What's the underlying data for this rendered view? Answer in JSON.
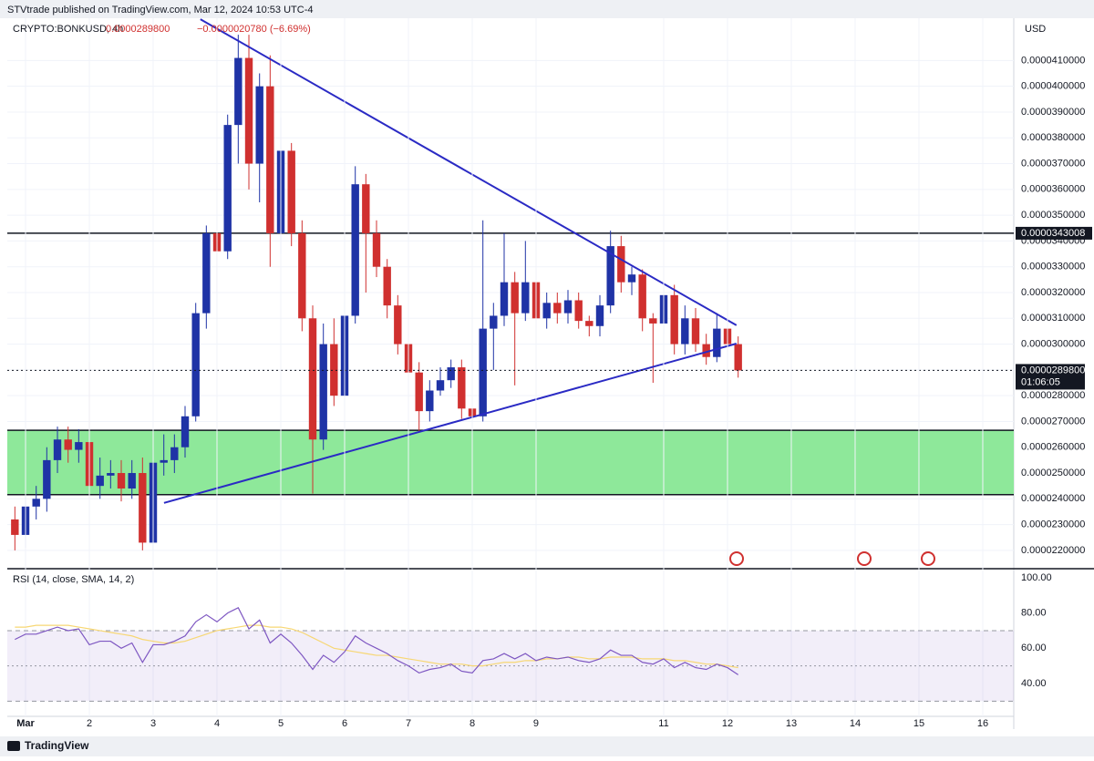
{
  "header": {
    "published": "STVtrade published on TradingView.com, Mar 12, 2024 10:53 UTC-4",
    "footer": "TradingView"
  },
  "chart_data": [
    {
      "type": "candlestick",
      "symbol": "CRYPTO:BONKUSD, 4h",
      "last": "0.0000289800",
      "change": "−0.0000020780 (−6.69%)",
      "currency": "USD",
      "x": [
        0.833,
        1,
        1.167,
        1.333,
        1.5,
        1.667,
        1.833,
        2,
        2.167,
        2.333,
        2.5,
        2.667,
        2.833,
        3,
        3.167,
        3.333,
        3.5,
        3.667,
        3.833,
        4,
        4.167,
        4.333,
        4.5,
        4.667,
        4.833,
        5,
        5.167,
        5.333,
        5.5,
        5.667,
        5.833,
        6,
        6.167,
        6.333,
        6.5,
        6.667,
        6.833,
        7,
        7.167,
        7.333,
        7.5,
        7.667,
        7.833,
        8,
        8.167,
        8.333,
        8.5,
        8.667,
        8.833,
        9,
        9.167,
        9.333,
        9.5,
        9.667,
        9.833,
        10,
        10.167,
        10.333,
        10.5,
        10.667,
        10.833,
        11,
        11.167,
        11.333,
        11.5,
        11.667,
        11.833,
        12,
        12.167
      ],
      "open": [
        2.32e-05,
        2.26e-05,
        2.37e-05,
        2.4e-05,
        2.55e-05,
        2.63e-05,
        2.59e-05,
        2.62e-05,
        2.45e-05,
        2.49e-05,
        2.5e-05,
        2.44e-05,
        2.5e-05,
        2.23e-05,
        2.54e-05,
        2.55e-05,
        2.6e-05,
        2.72e-05,
        3.12e-05,
        3.43e-05,
        3.36e-05,
        3.85e-05,
        4.11e-05,
        3.7e-05,
        4e-05,
        3.43e-05,
        3.75e-05,
        3.43e-05,
        3.1e-05,
        2.63e-05,
        3e-05,
        2.8e-05,
        3.11e-05,
        3.62e-05,
        3.43e-05,
        3.3e-05,
        3.15e-05,
        3e-05,
        2.89e-05,
        2.74e-05,
        2.82e-05,
        2.86e-05,
        2.91e-05,
        2.75e-05,
        2.72e-05,
        3.06e-05,
        3.11e-05,
        3.24e-05,
        3.12e-05,
        3.24e-05,
        3.1e-05,
        3.16e-05,
        3.12e-05,
        3.17e-05,
        3.09e-05,
        3.07e-05,
        3.15e-05,
        3.38e-05,
        3.24e-05,
        3.27e-05,
        3.1e-05,
        3.08e-05,
        3.19e-05,
        3e-05,
        3.1e-05,
        3e-05,
        2.95e-05,
        3.06e-05,
        3e-05
      ],
      "high": [
        2.37e-05,
        2.42e-05,
        2.45e-05,
        2.6e-05,
        2.68e-05,
        2.68e-05,
        2.67e-05,
        2.93e-05,
        2.56e-05,
        2.55e-05,
        2.55e-05,
        2.55e-05,
        2.56e-05,
        2.59e-05,
        2.65e-05,
        2.65e-05,
        2.76e-05,
        3.16e-05,
        3.46e-05,
        3.44e-05,
        3.89e-05,
        4.2e-05,
        4.2e-05,
        4.05e-05,
        4.12e-05,
        3.88e-05,
        3.78e-05,
        3.48e-05,
        3.15e-05,
        3.08e-05,
        3.1e-05,
        3.16e-05,
        3.69e-05,
        3.66e-05,
        3.48e-05,
        3.33e-05,
        3.19e-05,
        3.04e-05,
        2.93e-05,
        2.86e-05,
        2.91e-05,
        2.94e-05,
        2.94e-05,
        2.78e-05,
        3.48e-05,
        3.16e-05,
        3.43e-05,
        3.28e-05,
        3.4e-05,
        3.29e-05,
        3.2e-05,
        3.2e-05,
        3.21e-05,
        3.2e-05,
        3.11e-05,
        3.19e-05,
        3.44e-05,
        3.42e-05,
        3.3e-05,
        3.29e-05,
        3.12e-05,
        3.24e-05,
        3.23e-05,
        3.15e-05,
        3.14e-05,
        3.04e-05,
        3.12e-05,
        3.2e-05,
        3.03e-05
      ],
      "low": [
        2.2e-05,
        2.21e-05,
        2.32e-05,
        2.35e-05,
        2.5e-05,
        2.54e-05,
        2.54e-05,
        2.4e-05,
        2.4e-05,
        2.44e-05,
        2.39e-05,
        2.4e-05,
        2.2e-05,
        2.2e-05,
        2.49e-05,
        2.5e-05,
        2.56e-05,
        2.7e-05,
        3.06e-05,
        3.2e-05,
        3.33e-05,
        3.7e-05,
        3.6e-05,
        3.55e-05,
        3.3e-05,
        3.35e-05,
        3.38e-05,
        3.05e-05,
        2.42e-05,
        2.59e-05,
        2.76e-05,
        2.76e-05,
        3.08e-05,
        3.2e-05,
        3.26e-05,
        3.1e-05,
        2.96e-05,
        2.84e-05,
        2.66e-05,
        2.7e-05,
        2.8e-05,
        2.83e-05,
        2.71e-05,
        2.68e-05,
        2.7e-05,
        2.9e-05,
        3.07e-05,
        2.84e-05,
        3.09e-05,
        3.06e-05,
        3.06e-05,
        3.08e-05,
        3.08e-05,
        3.06e-05,
        3.03e-05,
        3.03e-05,
        3.12e-05,
        3.2e-05,
        3.19e-05,
        3.05e-05,
        2.85e-05,
        3.04e-05,
        2.96e-05,
        2.96e-05,
        2.97e-05,
        2.92e-05,
        2.93e-05,
        2.97e-05,
        2.87e-05
      ],
      "close": [
        2.26e-05,
        2.37e-05,
        2.4e-05,
        2.55e-05,
        2.63e-05,
        2.59e-05,
        2.62e-05,
        2.45e-05,
        2.49e-05,
        2.5e-05,
        2.44e-05,
        2.5e-05,
        2.23e-05,
        2.54e-05,
        2.55e-05,
        2.6e-05,
        2.72e-05,
        3.12e-05,
        3.43e-05,
        3.36e-05,
        3.85e-05,
        4.11e-05,
        3.7e-05,
        4e-05,
        3.43e-05,
        3.75e-05,
        3.43e-05,
        3.1e-05,
        2.63e-05,
        3e-05,
        2.8e-05,
        3.11e-05,
        3.62e-05,
        3.43e-05,
        3.3e-05,
        3.15e-05,
        3e-05,
        2.89e-05,
        2.74e-05,
        2.82e-05,
        2.86e-05,
        2.91e-05,
        2.75e-05,
        2.72e-05,
        3.06e-05,
        3.11e-05,
        3.24e-05,
        3.12e-05,
        3.24e-05,
        3.1e-05,
        3.16e-05,
        3.12e-05,
        3.17e-05,
        3.09e-05,
        3.07e-05,
        3.15e-05,
        3.38e-05,
        3.24e-05,
        3.27e-05,
        3.1e-05,
        3.08e-05,
        3.19e-05,
        3e-05,
        3.1e-05,
        3e-05,
        2.95e-05,
        3.06e-05,
        3e-05,
        2.898e-05
      ],
      "up_color": "#1f33a6",
      "down_color": "#d0302f",
      "xlim": [
        0.714,
        16.486
      ],
      "xticks": [
        {
          "value": 1,
          "label": "Mar"
        },
        2,
        3,
        4,
        5,
        6,
        7,
        8,
        9,
        11,
        12,
        13,
        14,
        15,
        16
      ],
      "ylim": [
        2.136e-05,
        4.264e-05
      ],
      "yticks": [
        {
          "value": 2.2e-05,
          "label": "0.0000220000"
        },
        {
          "value": 2.3e-05,
          "label": "0.0000230000"
        },
        {
          "value": 2.4e-05,
          "label": "0.0000240000"
        },
        {
          "value": 2.5e-05,
          "label": "0.0000250000"
        },
        {
          "value": 2.6e-05,
          "label": "0.0000260000"
        },
        {
          "value": 2.7e-05,
          "label": "0.0000270000"
        },
        {
          "value": 2.8e-05,
          "label": "0.0000280000"
        },
        {
          "value": 2.9e-05,
          "label": "0.0000290000"
        },
        {
          "value": 3e-05,
          "label": "0.0000300000"
        },
        {
          "value": 3.1e-05,
          "label": "0.0000310000"
        },
        {
          "value": 3.2e-05,
          "label": "0.0000320000"
        },
        {
          "value": 3.3e-05,
          "label": "0.0000330000"
        },
        {
          "value": 3.4e-05,
          "label": "0.0000340000"
        },
        {
          "value": 3.5e-05,
          "label": "0.0000350000"
        },
        {
          "value": 3.6e-05,
          "label": "0.0000360000"
        },
        {
          "value": 3.7e-05,
          "label": "0.0000370000"
        },
        {
          "value": 3.8e-05,
          "label": "0.0000380000"
        },
        {
          "value": 3.9e-05,
          "label": "0.0000390000"
        },
        {
          "value": 4e-05,
          "label": "0.0000400000"
        },
        {
          "value": 4.1e-05,
          "label": "0.0000410000"
        }
      ],
      "price_line": {
        "value": 3.43008e-05,
        "label": "0.0000343008"
      },
      "last_price": {
        "value": 2.898e-05,
        "label": "0.0000289800",
        "countdown": "01:06:05"
      },
      "zone": [
        2.416e-05,
        2.666e-05
      ],
      "zone_color": "#8ee89a",
      "trendlines": [
        {
          "x": [
            3.74,
            12.14
          ],
          "y": [
            4.26e-05,
            3.073e-05
          ]
        },
        {
          "x": [
            3.17,
            12.14
          ],
          "y": [
            2.384e-05,
            3.002e-05
          ]
        }
      ],
      "trendline_color": "#2a2ac4"
    },
    {
      "type": "line",
      "title": "RSI (14, close, SMA, 14, 2)",
      "series": [
        {
          "color": "#7e57c2",
          "values": [
            65,
            68,
            68,
            70,
            72,
            70,
            71,
            62,
            64,
            64,
            60,
            63,
            52,
            62,
            62,
            64,
            67,
            75,
            79,
            75,
            80,
            83,
            71,
            76,
            63,
            68,
            63,
            56,
            48,
            56,
            52,
            58,
            67,
            63,
            60,
            57,
            53,
            50,
            46,
            48,
            49,
            51,
            47,
            46,
            53,
            54,
            57,
            54,
            57,
            53,
            55,
            54,
            55,
            53,
            52,
            54,
            59,
            56,
            56,
            52,
            51,
            54,
            49,
            52,
            49,
            48,
            51,
            49,
            45
          ]
        },
        {
          "color": "#f7d774",
          "values": [
            72,
            72,
            73,
            73,
            73,
            73,
            72,
            71,
            70,
            69,
            68,
            67,
            65,
            64,
            63,
            63,
            64,
            66,
            68,
            70,
            71,
            72,
            73,
            73,
            72,
            72,
            71,
            69,
            66,
            63,
            60,
            59,
            58,
            57,
            56,
            56,
            55,
            54,
            53,
            52,
            51,
            51,
            51,
            50,
            50,
            51,
            52,
            52,
            53,
            53,
            54,
            54,
            55,
            55,
            54,
            54,
            55,
            55,
            55,
            54,
            54,
            54,
            53,
            53,
            52,
            51,
            51,
            50,
            49
          ]
        }
      ],
      "ylim": [
        21.9,
        104.1
      ],
      "yticks": [
        {
          "value": 100,
          "label": "100.00"
        },
        {
          "value": 80,
          "label": "80.00"
        },
        {
          "value": 60,
          "label": "60.00"
        },
        {
          "value": 40,
          "label": "40.00"
        }
      ],
      "levels": [
        30,
        50,
        70
      ],
      "band_color": "#7e57c2"
    }
  ]
}
